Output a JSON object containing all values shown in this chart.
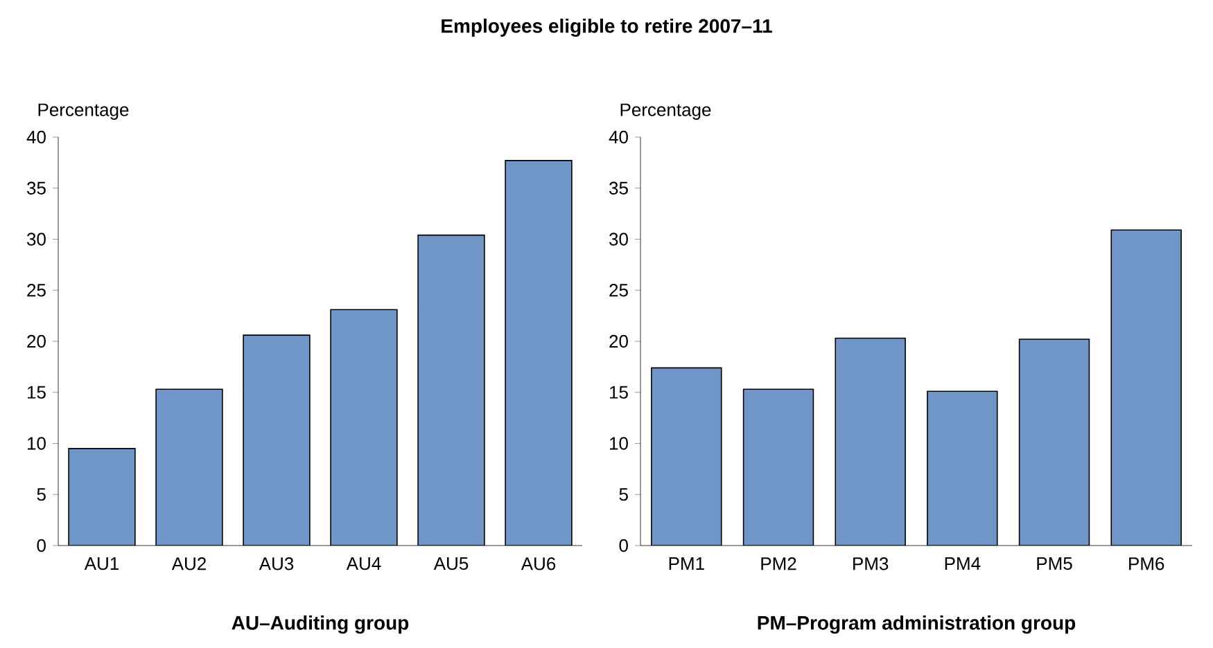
{
  "chart_data": [
    {
      "type": "bar",
      "title": "Employees eligible to retire 2007–11",
      "xlabel": "AU–Auditing group",
      "ylabel": "Percentage",
      "categories": [
        "AU1",
        "AU2",
        "AU3",
        "AU4",
        "AU5",
        "AU6"
      ],
      "values": [
        9.5,
        15.3,
        20.6,
        23.1,
        30.4,
        37.7
      ],
      "color": "#7096c8",
      "ylim": [
        0,
        40
      ],
      "yticks": [
        0,
        5,
        10,
        15,
        20,
        25,
        30,
        35,
        40
      ]
    },
    {
      "type": "bar",
      "xlabel": "PM–Program administration group",
      "ylabel": "Percentage",
      "categories": [
        "PM1",
        "PM2",
        "PM3",
        "PM4",
        "PM5",
        "PM6"
      ],
      "values": [
        17.4,
        15.3,
        20.3,
        15.1,
        20.2,
        30.9
      ],
      "color": "#7096c8",
      "ylim": [
        0,
        40
      ],
      "yticks": [
        0,
        5,
        10,
        15,
        20,
        25,
        30,
        35,
        40
      ]
    }
  ]
}
